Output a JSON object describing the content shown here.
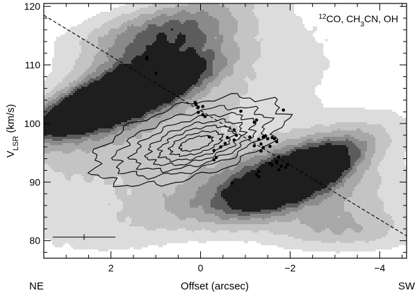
{
  "chart_data": {
    "type": "scatter",
    "annotation": {
      "sup": "12",
      "text": "CO, CH",
      "sub": "3",
      "text2": "CN, OH"
    },
    "xlabel": "Offset (arcsec)",
    "ylabel": {
      "main": "V",
      "sub": "LSR",
      "unit": " (km/s)"
    },
    "x_reversed": true,
    "xlim": [
      3.5,
      -4.6
    ],
    "ylim": [
      77,
      120.5
    ],
    "x_ticks": [
      2,
      0,
      -2,
      -4
    ],
    "x_tick_labels": [
      "2",
      "0",
      "−2",
      "−4"
    ],
    "y_ticks": [
      80,
      90,
      100,
      110,
      120
    ],
    "y_tick_labels": [
      "80",
      "90",
      "100",
      "110",
      "120"
    ],
    "corner_labels": {
      "left": "NE",
      "right": "SW"
    },
    "grayscale_emission": {
      "name": "12CO",
      "levels": [
        1,
        2,
        3,
        4,
        5,
        6
      ],
      "colors": [
        "#dcdcdc",
        "#c4c4c4",
        "#a8a8a8",
        "#8a8a8a",
        "#5c5c5c",
        "#1e1e1e"
      ],
      "blobs": [
        {
          "cx": 1.9,
          "cy": 104.1,
          "sx": 1.3,
          "sy": 2.3,
          "amp": 6.8,
          "rot": -20
        },
        {
          "cx": 1.4,
          "cy": 108.5,
          "sx": 1.7,
          "sy": 4.8,
          "amp": 3.0,
          "rot": -35
        },
        {
          "cx": -2.1,
          "cy": 90.6,
          "sx": 1.0,
          "sy": 2.5,
          "amp": 5.4,
          "rot": -25
        },
        {
          "cx": -1.4,
          "cy": 91.0,
          "sx": 1.9,
          "sy": 3.6,
          "amp": 2.6,
          "rot": -20
        },
        {
          "cx": -3.0,
          "cy": 87.0,
          "sx": 1.3,
          "sy": 4.0,
          "amp": 1.6,
          "rot": -10
        },
        {
          "cx": 0.6,
          "cy": 98.5,
          "sx": 3.0,
          "sy": 8.5,
          "amp": 1.4,
          "rot": -30
        },
        {
          "cx": 1.2,
          "cy": 116.0,
          "sx": 1.4,
          "sy": 3.0,
          "amp": 1.5,
          "rot": -10
        },
        {
          "cx": -3.4,
          "cy": 81.5,
          "sx": 1.3,
          "sy": 2.5,
          "amp": 1.3,
          "rot": 0
        }
      ]
    },
    "line_contours": {
      "name": "CH3CN",
      "center": [
        0.1,
        96.6
      ],
      "ellipses": [
        {
          "rx": 2.2,
          "ry": 6.2,
          "rot": -16,
          "dx": 0.15,
          "dy": 0.4
        },
        {
          "rx": 1.75,
          "ry": 4.8,
          "rot": -16,
          "dx": 0.1,
          "dy": 0.3
        },
        {
          "rx": 1.4,
          "ry": 3.9,
          "rot": -16,
          "dx": 0.05,
          "dy": 0.2
        },
        {
          "rx": 1.1,
          "ry": 3.1,
          "rot": -16,
          "dx": 0.02,
          "dy": 0.1
        },
        {
          "rx": 0.85,
          "ry": 2.4,
          "rot": -16,
          "dx": 0.0,
          "dy": 0.05
        },
        {
          "rx": 0.6,
          "ry": 1.7,
          "rot": -16,
          "dx": 0.0,
          "dy": 0.0
        },
        {
          "rx": 0.38,
          "ry": 1.05,
          "rot": -16,
          "dx": 0.0,
          "dy": 0.0
        }
      ]
    },
    "oh_masers": {
      "name": "OH",
      "points": [
        [
          1.2,
          111.3
        ],
        [
          1.2,
          111.0
        ],
        [
          1.0,
          108.6
        ],
        [
          0.12,
          103.6
        ],
        [
          0.1,
          103.2
        ],
        [
          0.05,
          102.8
        ],
        [
          -0.05,
          102.9
        ],
        [
          0.05,
          101.9
        ],
        [
          -0.05,
          101.5
        ],
        [
          -0.1,
          101.2
        ],
        [
          -0.9,
          102.1
        ],
        [
          -1.85,
          102.3
        ],
        [
          -1.25,
          100.6
        ],
        [
          -1.2,
          100.2
        ],
        [
          -0.75,
          98.9
        ],
        [
          -0.8,
          98.0
        ],
        [
          -0.6,
          97.6
        ],
        [
          -0.75,
          97.2
        ],
        [
          -0.2,
          97.7
        ],
        [
          -0.55,
          96.6
        ],
        [
          -0.45,
          96.0
        ],
        [
          -0.3,
          95.4
        ],
        [
          -0.35,
          94.2
        ],
        [
          -0.3,
          93.8
        ],
        [
          -1.1,
          97.7
        ],
        [
          -1.3,
          97.3
        ],
        [
          -1.4,
          97.7
        ],
        [
          -1.45,
          97.9
        ],
        [
          -1.5,
          97.4
        ],
        [
          -1.35,
          96.5
        ],
        [
          -1.2,
          96.2
        ],
        [
          -1.55,
          96.1
        ],
        [
          -1.6,
          97.6
        ],
        [
          -1.7,
          96.9
        ],
        [
          -1.65,
          97.4
        ],
        [
          -1.4,
          95.9
        ],
        [
          -1.35,
          95.3
        ],
        [
          -1.75,
          94.3
        ],
        [
          -1.7,
          93.6
        ],
        [
          -1.8,
          92.7
        ],
        [
          -1.75,
          92.1
        ],
        [
          -1.3,
          91.8
        ],
        [
          -1.55,
          93.2
        ],
        [
          -1.25,
          91.3
        ],
        [
          -1.3,
          90.9
        ],
        [
          -0.7,
          89.8
        ],
        [
          -1.7,
          93.3
        ],
        [
          -1.6,
          92.9
        ],
        [
          -1.95,
          93.0
        ],
        [
          -1.9,
          92.5
        ]
      ]
    },
    "dashed_line": {
      "from": [
        3.5,
        118.5
      ],
      "to": [
        -4.6,
        80.8
      ]
    },
    "error_bar": {
      "x": 2.6,
      "y": 80.6,
      "dx": 0.7,
      "dy": 0.5
    }
  }
}
